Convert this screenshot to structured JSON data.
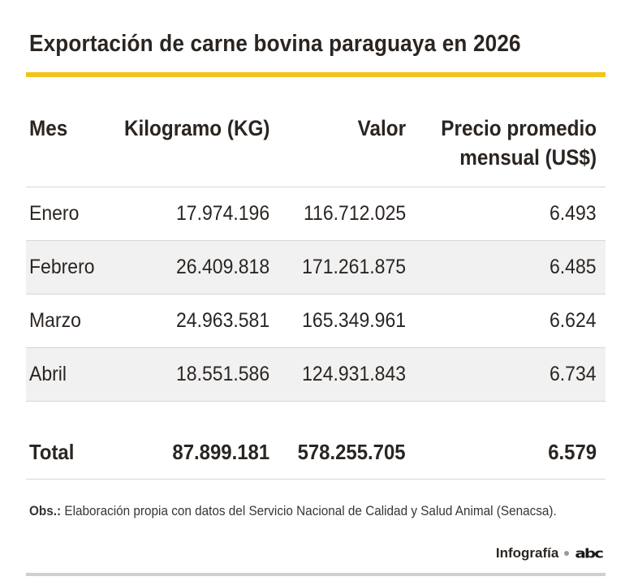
{
  "title": "Exportación de carne bovina paraguaya en 2026",
  "columns": {
    "mes": "Mes",
    "kg": "Kilogramo (KG)",
    "valor": "Valor",
    "precio_line1": "Precio promedio",
    "precio_line2": "mensual (US$)"
  },
  "rows": [
    {
      "mes": "Enero",
      "kg": "17.974.196",
      "valor": "116.712.025",
      "precio": "6.493"
    },
    {
      "mes": "Febrero",
      "kg": "26.409.818",
      "valor": "171.261.875",
      "precio": "6.485"
    },
    {
      "mes": "Marzo",
      "kg": "24.963.581",
      "valor": "165.349.961",
      "precio": "6.624"
    },
    {
      "mes": "Abril",
      "kg": "18.551.586",
      "valor": "124.931.843",
      "precio": "6.734"
    }
  ],
  "total": {
    "label": "Total",
    "kg": "87.899.181",
    "valor": "578.255.705",
    "precio": "6.579"
  },
  "obs": {
    "label": "Obs.:",
    "text": "Elaboración propia con datos del Servicio Nacional de Calidad y Salud Animal (Senacsa)."
  },
  "credit": {
    "label": "Infografía",
    "logo": "abc"
  },
  "colors": {
    "accent": "#f2c318",
    "text": "#2b2521",
    "row_shade": "#f1f1f1"
  }
}
